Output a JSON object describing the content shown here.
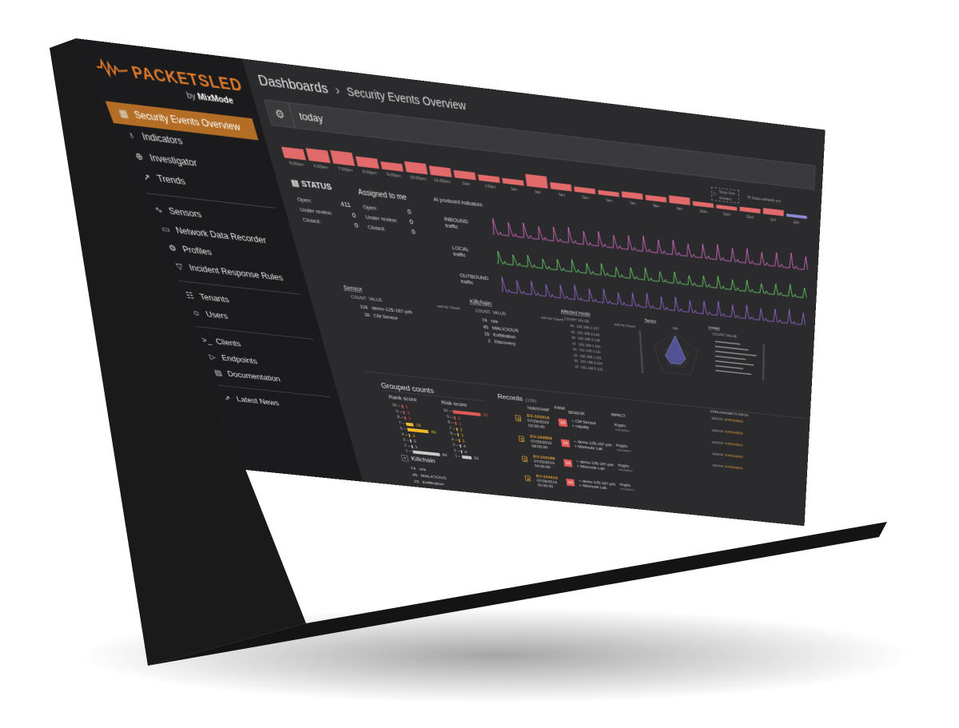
{
  "app": {
    "logo_main": "PACKETSLED",
    "logo_by": "by",
    "logo_brand": "MixMode",
    "accent_color": "#b36d24"
  },
  "sidebar": {
    "items": [
      {
        "label": "Security Events Overview",
        "icon": "dashboard-grid-icon",
        "active": true
      },
      {
        "label": "Indicators",
        "icon": "lightbulb-icon"
      },
      {
        "label": "Investigator",
        "icon": "crosshair-icon"
      },
      {
        "label": "Trends",
        "icon": "trend-line-icon"
      },
      {
        "label": "Sensors",
        "icon": "pulse-icon"
      },
      {
        "label": "Network Data Recorder",
        "icon": "hard-drive-icon"
      },
      {
        "label": "Profiles",
        "icon": "cog-icon"
      },
      {
        "label": "Incident Response Rules",
        "icon": "filter-icon"
      },
      {
        "label": "Tenants",
        "icon": "hierarchy-icon"
      },
      {
        "label": "Users",
        "icon": "users-icon"
      },
      {
        "label": "Clients",
        "icon": "terminal-icon"
      },
      {
        "label": "Endpoints",
        "icon": "play-icon"
      },
      {
        "label": "Documentation",
        "icon": "document-icon"
      },
      {
        "label": "Latest News",
        "icon": "external-link-icon"
      }
    ]
  },
  "header": {
    "breadcrumb_root": "Dashboards",
    "breadcrumb_sep": "›",
    "breadcrumb_current": "Security Events Overview"
  },
  "filter": {
    "query": "today"
  },
  "timebar": {
    "labels": [
      "5:00pm",
      "6:00pm",
      "7:00pm",
      "8:00pm",
      "9:00pm",
      "10:00pm",
      "11:00pm",
      "12am",
      "1:00am",
      "2am",
      "3am",
      "4am",
      "5am",
      "6am",
      "7am",
      "8am",
      "9am",
      "10am",
      "11am",
      "12pm",
      "1pm",
      "2pm"
    ],
    "values": [
      14,
      16,
      17,
      13,
      10,
      14,
      12,
      10,
      8,
      7,
      16,
      9,
      7,
      6,
      8,
      7,
      10,
      6,
      5,
      6,
      8,
      4
    ]
  },
  "controls": {
    "live_btn": "Stop live stream",
    "refresh": "Auto-refresh on"
  },
  "status": {
    "title": "STATUS",
    "assigned_title": "Assigned to me",
    "rows": [
      {
        "label": "Open:",
        "value": "411",
        "mine": "0"
      },
      {
        "label": "Under review:",
        "value": "0",
        "mine": "0"
      },
      {
        "label": "Closed:",
        "value": "0",
        "mine": "0"
      }
    ]
  },
  "ai": {
    "title": "AI produced indicators",
    "traffic": [
      {
        "line1": "INBOUND",
        "line2": "traffic",
        "color": "#d86ac7"
      },
      {
        "line1": "LOCAL",
        "line2": "traffic",
        "color": "#6ad26a"
      },
      {
        "line1": "OUTBOUND",
        "line2": "traffic",
        "color": "#9a6ad8"
      }
    ]
  },
  "sensor_panel": {
    "title": "Sensor",
    "head_count": "COUNT",
    "head_value": "VALUE",
    "sort": "sort by: Count",
    "rows": [
      {
        "count": "118",
        "value": "demo-125-167-prb"
      },
      {
        "count": "18",
        "value": "CM Sensor"
      }
    ]
  },
  "killchain_panel": {
    "title": "Killchain",
    "head_count": "COUNT",
    "head_value": "VALUE",
    "sort": "sort by: Count",
    "rows": [
      {
        "count": "74",
        "value": "n/a"
      },
      {
        "count": "45",
        "value": "MALICIOUS"
      },
      {
        "count": "15",
        "value": "Exfiltration"
      },
      {
        "count": "2",
        "value": "Discovery"
      }
    ]
  },
  "hosts_panel": {
    "title": "Affected Hosts",
    "head": "COUNT  VALUE",
    "sort": "sort by Count",
    "rows": [
      {
        "count": "49",
        "value": "192.168.2.107"
      },
      {
        "count": "43",
        "value": "192.168.2.118"
      },
      {
        "count": "40",
        "value": "192.168.4.118"
      },
      {
        "count": "37",
        "value": "192.168.1.102"
      },
      {
        "count": "34",
        "value": "192.168.2.111"
      },
      {
        "count": "33",
        "value": "192.168.1.101"
      },
      {
        "count": "33",
        "value": "192.168.3.104"
      },
      {
        "count": "33",
        "value": "192.168.5.122"
      }
    ]
  },
  "tactics_panel": {
    "title": "Tactics",
    "top": "MA"
  },
  "impact_panel": {
    "title": "Impact",
    "head": "COUNT VALUE"
  },
  "grouped": {
    "title": "Grouped counts",
    "rank_title": "Rank score",
    "risk_title": "Risk score",
    "rank": [
      {
        "score": "10",
        "value": 1,
        "color": "#e05a5a"
      },
      {
        "score": "9",
        "value": 3,
        "color": "#e05a5a"
      },
      {
        "score": "8",
        "value": 1,
        "color": "#e05a5a"
      },
      {
        "score": "7",
        "value": 16,
        "color": "#f0b92a"
      },
      {
        "score": "5",
        "value": 46,
        "color": "#f0b92a"
      },
      {
        "score": "4",
        "value": 3,
        "color": "#f0b92a"
      },
      {
        "score": "3",
        "value": 2,
        "color": "#cccccc"
      },
      {
        "score": "2",
        "value": 1,
        "color": "#cccccc"
      },
      {
        "score": "1",
        "value": 60,
        "color": "#cccccc"
      }
    ],
    "risk": [
      {
        "score": "10",
        "value": 92,
        "color": "#e05a5a"
      },
      {
        "score": "9",
        "value": 3,
        "color": "#e05a5a"
      },
      {
        "score": "8",
        "value": 1,
        "color": "#e05a5a"
      },
      {
        "score": "7",
        "value": 1,
        "color": "#f0b92a"
      },
      {
        "score": "5",
        "value": 1,
        "color": "#f0b92a"
      },
      {
        "score": "4",
        "value": 1,
        "color": "#f0b92a"
      },
      {
        "score": "3",
        "value": 4,
        "color": "#cccccc"
      },
      {
        "score": "2",
        "value": 4,
        "color": "#cccccc"
      },
      {
        "score": "1",
        "value": 32,
        "color": "#cccccc"
      }
    ],
    "killchain_title": "Killchain",
    "killchain": [
      {
        "count": "74",
        "value": "n/a"
      },
      {
        "count": "45",
        "value": "MALICIOUS"
      },
      {
        "count": "15",
        "value": "Exfiltration"
      }
    ]
  },
  "records": {
    "title": "Records",
    "count": "(136)",
    "head_timestamp": "TIMESTAMP",
    "head_rank": "RANK",
    "head_sensor": "SENSOR",
    "head_impact": "IMPACT",
    "rows": [
      {
        "id": "EV-102914",
        "date": "07/29/2019",
        "time": "02:00:00",
        "rank": "10",
        "sensor": "CM Sensor",
        "sensor2": "capaity",
        "impact": "Krypto",
        "impact2": "reputation"
      },
      {
        "id": "EV-103593",
        "date": "07/29/2019",
        "time": "08:00:00",
        "rank": "10",
        "sensor": "demo-125-167-prb",
        "sensor2": "Mixmode Lab",
        "impact": "Krypto",
        "impact2": "reputation"
      },
      {
        "id": "EV-103168",
        "date": "07/29/2019",
        "time": "04:00:00",
        "rank": "10",
        "sensor": "demo-125-167-prb",
        "sensor2": "Mixmode Lab",
        "impact": "Krypto",
        "impact2": "reputation"
      },
      {
        "id": "EV-102419",
        "date": "07/28/2019",
        "time": "20:00:00",
        "rank": "10",
        "sensor": "demo-125-167-prb",
        "sensor2": "Mixmode Lab",
        "impact": "Krypto",
        "impact2": "reputation"
      }
    ]
  },
  "log": {
    "head": "STATE  ASSIGNED TO  STATUS",
    "rows": [
      {
        "a": "SENSOR",
        "b": "IN PROGRESS"
      },
      {
        "a": "SENSOR",
        "b": "IN PROGRESS"
      },
      {
        "a": "SENSOR",
        "b": "IN PROGRESS"
      },
      {
        "a": "SENSOR",
        "b": "IN PROGRESS"
      },
      {
        "a": "SENSOR",
        "b": "IN PROGRESS"
      }
    ]
  }
}
